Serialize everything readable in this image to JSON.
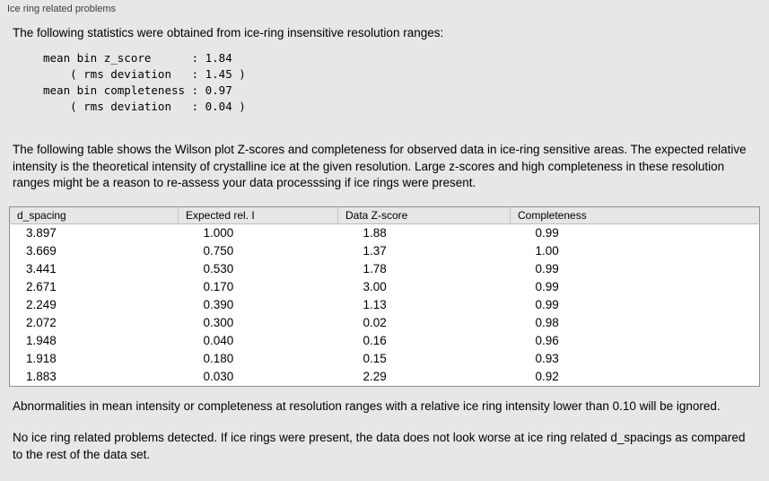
{
  "panel": {
    "title": "Ice ring related problems"
  },
  "intro": "The following statistics were obtained from ice-ring insensitive resolution ranges:",
  "stats_block": "mean bin z_score      : 1.84\n    ( rms deviation   : 1.45 )\nmean bin completeness : 0.97\n    ( rms deviation   : 0.04 )",
  "table_intro": "The following table shows the Wilson plot Z-scores and completeness for observed data in ice-ring sensitive areas. The expected relative intensity is the theoretical intensity of crystalline ice at the given resolution. Large z-scores and high completeness in these resolution ranges might be a reason to re-assess your data processsing if ice rings were present.",
  "table": {
    "headers": [
      "d_spacing",
      "Expected rel. I",
      "Data Z-score",
      "Completeness"
    ],
    "rows": [
      [
        "3.897",
        "1.000",
        "1.88",
        "0.99"
      ],
      [
        "3.669",
        "0.750",
        "1.37",
        "1.00"
      ],
      [
        "3.441",
        "0.530",
        "1.78",
        "0.99"
      ],
      [
        "2.671",
        "0.170",
        "3.00",
        "0.99"
      ],
      [
        "2.249",
        "0.390",
        "1.13",
        "0.99"
      ],
      [
        "2.072",
        "0.300",
        "0.02",
        "0.98"
      ],
      [
        "1.948",
        "0.040",
        "0.16",
        "0.96"
      ],
      [
        "1.918",
        "0.180",
        "0.15",
        "0.93"
      ],
      [
        "1.883",
        "0.030",
        "2.29",
        "0.92"
      ]
    ]
  },
  "note_ignore": "Abnormalities in mean intensity or completeness at resolution ranges with a relative ice ring intensity lower than 0.10 will be ignored.",
  "conclusion": "No ice ring related problems detected. If ice rings were present, the data does not look worse at ice ring related d_spacings as compared to the rest of the data set."
}
